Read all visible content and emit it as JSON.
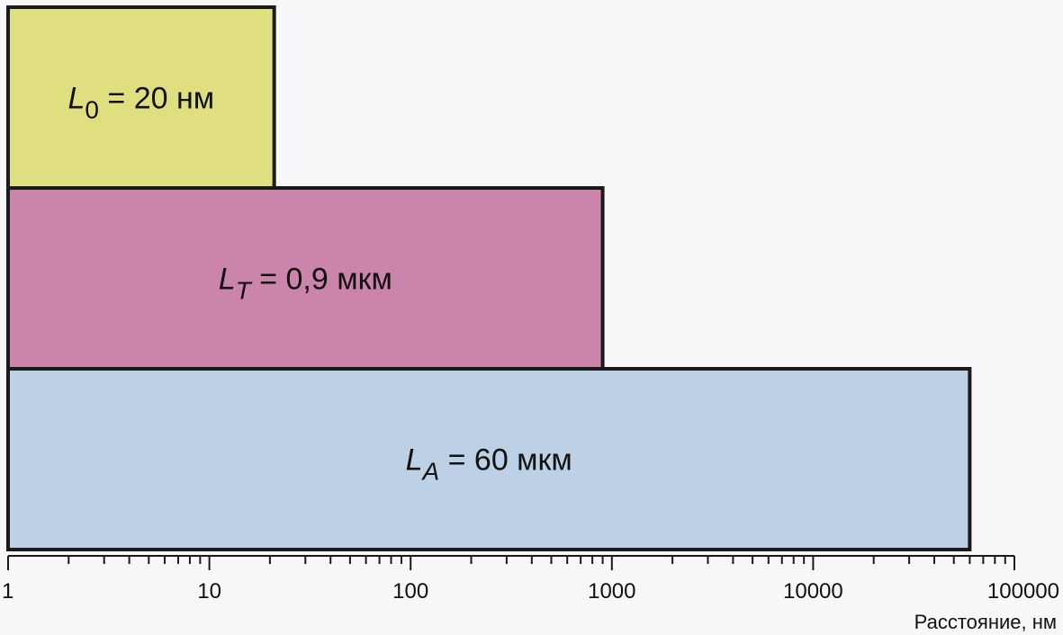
{
  "chart_data": {
    "type": "bar",
    "orientation": "horizontal",
    "x_scale": "log",
    "xlim": [
      1,
      100000
    ],
    "xlabel": "Расстояние, нм",
    "ylabel": "",
    "title": "",
    "grid": false,
    "x_ticks": [
      "1",
      "10",
      "100",
      "1000",
      "10000",
      "100000"
    ],
    "bars": [
      {
        "symbol": "L",
        "subscript": "0",
        "value_text": " = 20 нм",
        "value_nm": 21,
        "color": "#e0df80"
      },
      {
        "symbol": "L",
        "subscript": "T",
        "value_text": " = 0,9 мкм",
        "value_nm": 900,
        "color": "#cc85aa"
      },
      {
        "symbol": "L",
        "subscript": "A",
        "value_text": " = 60 мкм",
        "value_nm": 60000,
        "color": "#bcd1e5"
      }
    ]
  }
}
